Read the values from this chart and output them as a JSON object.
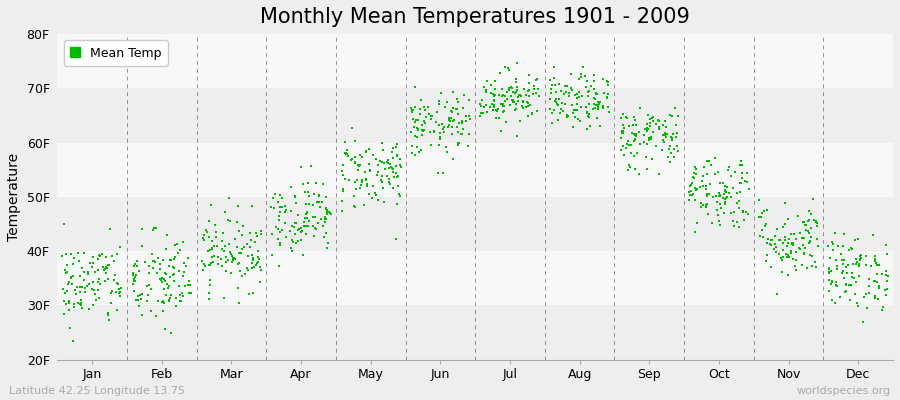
{
  "title": "Monthly Mean Temperatures 1901 - 2009",
  "ylabel": "Temperature",
  "ylim": [
    20,
    80
  ],
  "ytick_labels": [
    "20F",
    "30F",
    "40F",
    "50F",
    "60F",
    "70F",
    "80F"
  ],
  "ytick_values": [
    20,
    30,
    40,
    50,
    60,
    70,
    80
  ],
  "months": [
    "Jan",
    "Feb",
    "Mar",
    "Apr",
    "May",
    "Jun",
    "Jul",
    "Aug",
    "Sep",
    "Oct",
    "Nov",
    "Dec"
  ],
  "month_mean_F": [
    34.0,
    34.5,
    40.0,
    46.5,
    54.5,
    63.0,
    68.5,
    67.5,
    61.0,
    51.0,
    42.0,
    36.0
  ],
  "month_std_F": [
    4.0,
    4.5,
    3.5,
    3.5,
    3.5,
    3.0,
    2.5,
    2.5,
    3.0,
    3.5,
    3.5,
    3.5
  ],
  "n_years": 109,
  "dot_color": "#00bb00",
  "dot_size": 2,
  "bg_color": "#eeeeee",
  "band_colors": [
    "#eeeeee",
    "#f8f8f8"
  ],
  "legend_label": "Mean Temp",
  "footer_left": "Latitude 42.25 Longitude 13.75",
  "footer_right": "worldspecies.org",
  "footer_color": "#aaaaaa",
  "vline_color": "#666666",
  "title_fontsize": 15,
  "axis_label_fontsize": 10,
  "tick_fontsize": 9,
  "footer_fontsize": 8,
  "seed": 42
}
